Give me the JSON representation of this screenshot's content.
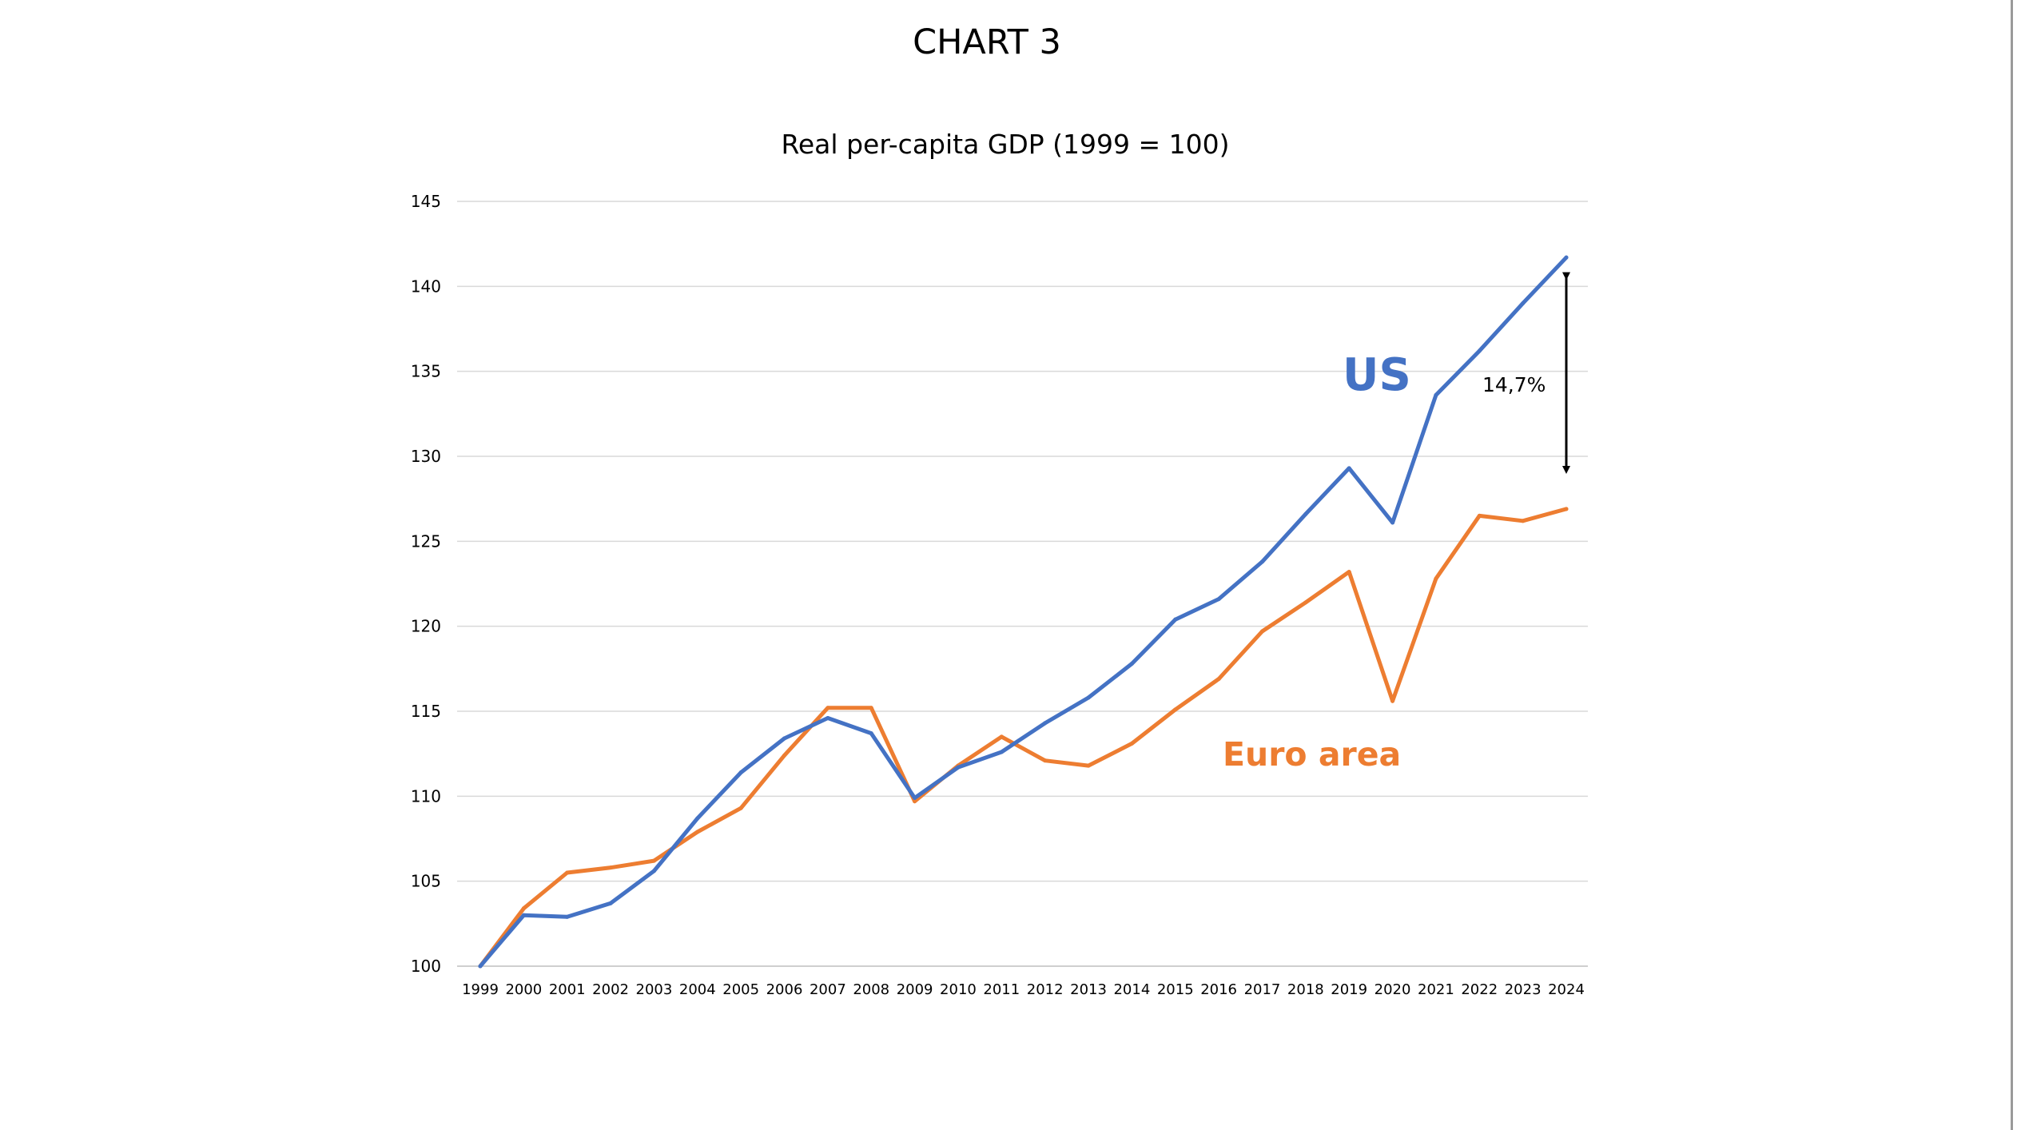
{
  "slide": {
    "title": "CHART 3"
  },
  "chart_data": {
    "type": "line",
    "title": "Real per-capita GDP (1999 = 100)",
    "xlabel": "",
    "ylabel": "",
    "ylim": [
      100,
      145
    ],
    "yticks": [
      100,
      105,
      110,
      115,
      120,
      125,
      130,
      135,
      140,
      145
    ],
    "grid": true,
    "x": [
      "1999",
      "2000",
      "2001",
      "2002",
      "2003",
      "2004",
      "2005",
      "2006",
      "2007",
      "2008",
      "2009",
      "2010",
      "2011",
      "2012",
      "2013",
      "2014",
      "2015",
      "2016",
      "2017",
      "2018",
      "2019",
      "2020",
      "2021",
      "2022",
      "2023",
      "2024"
    ],
    "series": [
      {
        "name": "US",
        "color": "#4472C4",
        "values": [
          100.0,
          103.0,
          102.9,
          103.7,
          105.6,
          108.7,
          111.4,
          113.4,
          114.6,
          113.7,
          109.9,
          111.7,
          112.6,
          114.3,
          115.8,
          117.8,
          120.4,
          121.6,
          123.8,
          126.6,
          129.3,
          126.1,
          133.6,
          136.2,
          139.0,
          141.7
        ]
      },
      {
        "name": "Euro area",
        "color": "#ED7D31",
        "values": [
          100.0,
          103.4,
          105.5,
          105.8,
          106.2,
          107.9,
          109.3,
          112.4,
          115.2,
          115.2,
          109.7,
          111.8,
          113.5,
          112.1,
          111.8,
          113.1,
          115.1,
          116.9,
          119.7,
          121.4,
          123.2,
          115.6,
          122.8,
          126.5,
          126.2,
          126.9
        ]
      }
    ],
    "annotations": [
      {
        "text": "14,7%",
        "type": "double-arrow",
        "from": 140.6,
        "to": 129.2,
        "at": "2024"
      }
    ]
  }
}
